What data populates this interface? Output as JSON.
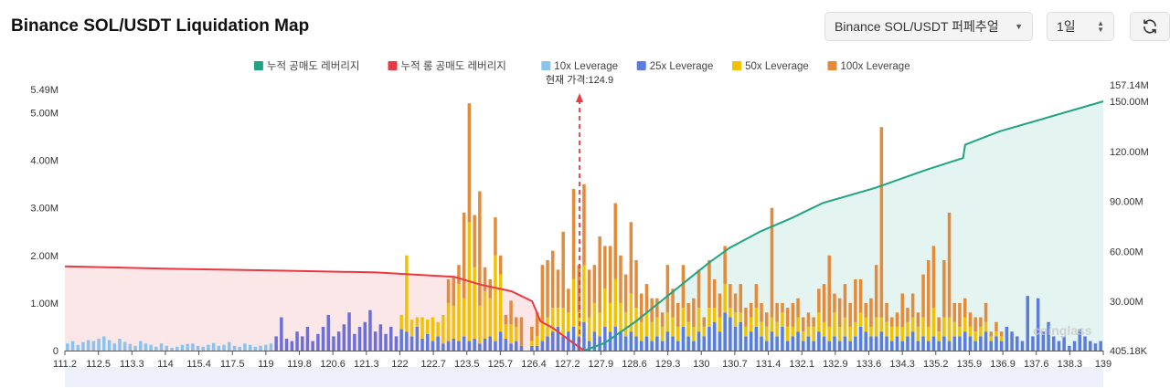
{
  "header": {
    "title": "Binance SOL/USDT Liquidation Map",
    "market_select": "Binance SOL/USDT 퍼페추얼",
    "period_select": "1일",
    "refresh_icon": "refresh-icon"
  },
  "colors": {
    "short_cum": "#21a383",
    "long_cum": "#ea3943",
    "lev10": "#8ac3ec",
    "lev25": "#5b7be0",
    "lev50": "#f2c200",
    "lev100": "#e38b3b",
    "purple": "#6c6fd8"
  },
  "chart_data": {
    "type": "bar",
    "title": "Binance SOL/USDT Liquidation Map",
    "current_price_label": "현재 가격:124.9",
    "current_price": 124.9,
    "legend": [
      {
        "key": "short_cum",
        "label": "누적 공매도 레버리지"
      },
      {
        "key": "long_cum",
        "label": "누적 롱 공매도 레버리지"
      },
      {
        "key": "lev10",
        "label": "10x Leverage"
      },
      {
        "key": "lev25",
        "label": "25x Leverage"
      },
      {
        "key": "lev50",
        "label": "50x Leverage"
      },
      {
        "key": "lev100",
        "label": "100x Leverage"
      }
    ],
    "y_left": {
      "min": 0,
      "max": 5.49,
      "unit": "M",
      "ticks": [
        "0",
        "1.00M",
        "2.00M",
        "3.00M",
        "4.00M",
        "5.00M",
        "5.49M"
      ],
      "tick_values": [
        0,
        1,
        2,
        3,
        4,
        5,
        5.49
      ]
    },
    "y_right": {
      "min": 0.405,
      "max": 157.14,
      "unit": "M",
      "ticks": [
        "405.18K",
        "30.00M",
        "60.00M",
        "90.00M",
        "120.00M",
        "150.00M",
        "157.14M"
      ],
      "tick_values": [
        0.405,
        30,
        60,
        90,
        120,
        150,
        157.14
      ]
    },
    "x_ticks": [
      "111.2",
      "112.5",
      "113.3",
      "114",
      "115.4",
      "117.5",
      "119",
      "119.8",
      "120.6",
      "121.3",
      "122",
      "122.7",
      "123.5",
      "125.7",
      "126.4",
      "127.2",
      "127.9",
      "128.6",
      "129.3",
      "130",
      "130.7",
      "131.4",
      "132.1",
      "132.9",
      "133.6",
      "134.3",
      "135.2",
      "135.9",
      "136.9",
      "137.6",
      "138.3",
      "139"
    ],
    "long_cumulative": {
      "unit": "M",
      "points": [
        [
          0,
          51
        ],
        [
          0.1,
          49.5
        ],
        [
          0.2,
          48.5
        ],
        [
          0.3,
          47.3
        ],
        [
          0.375,
          44.7
        ],
        [
          0.4,
          40
        ],
        [
          0.43,
          36
        ],
        [
          0.45,
          30
        ],
        [
          0.458,
          18
        ],
        [
          0.47,
          14
        ],
        [
          0.485,
          7
        ],
        [
          0.5,
          0.4
        ]
      ]
    },
    "short_cumulative": {
      "unit": "M",
      "points": [
        [
          0.5,
          0.4
        ],
        [
          0.52,
          5
        ],
        [
          0.55,
          18
        ],
        [
          0.58,
          33
        ],
        [
          0.6,
          43
        ],
        [
          0.62,
          53
        ],
        [
          0.64,
          62
        ],
        [
          0.67,
          72
        ],
        [
          0.7,
          80
        ],
        [
          0.73,
          89
        ],
        [
          0.78,
          98
        ],
        [
          0.83,
          109
        ],
        [
          0.865,
          116
        ],
        [
          0.867,
          124
        ],
        [
          0.9,
          132
        ],
        [
          0.95,
          141
        ],
        [
          1,
          150
        ]
      ]
    },
    "bars": {
      "unit": "M",
      "per_bar": [
        "lev10/lev25",
        "lev50",
        "lev100"
      ],
      "values": [
        [
          0.15,
          0,
          0
        ],
        [
          0.2,
          0,
          0
        ],
        [
          0.12,
          0,
          0
        ],
        [
          0.18,
          0,
          0
        ],
        [
          0.22,
          0,
          0
        ],
        [
          0.2,
          0,
          0
        ],
        [
          0.25,
          0,
          0
        ],
        [
          0.3,
          0,
          0
        ],
        [
          0.22,
          0,
          0
        ],
        [
          0.15,
          0,
          0
        ],
        [
          0.25,
          0,
          0
        ],
        [
          0.18,
          0,
          0
        ],
        [
          0.14,
          0,
          0
        ],
        [
          0.1,
          0,
          0
        ],
        [
          0.2,
          0,
          0
        ],
        [
          0.15,
          0,
          0
        ],
        [
          0.12,
          0,
          0
        ],
        [
          0.08,
          0,
          0
        ],
        [
          0.15,
          0,
          0
        ],
        [
          0.1,
          0,
          0
        ],
        [
          0.06,
          0,
          0
        ],
        [
          0.08,
          0,
          0
        ],
        [
          0.12,
          0,
          0
        ],
        [
          0.14,
          0,
          0
        ],
        [
          0.15,
          0,
          0
        ],
        [
          0.1,
          0,
          0
        ],
        [
          0.08,
          0,
          0
        ],
        [
          0.12,
          0,
          0
        ],
        [
          0.16,
          0,
          0
        ],
        [
          0.1,
          0,
          0
        ],
        [
          0.12,
          0,
          0
        ],
        [
          0.18,
          0,
          0
        ],
        [
          0.1,
          0,
          0
        ],
        [
          0.08,
          0,
          0
        ],
        [
          0.15,
          0,
          0
        ],
        [
          0.12,
          0,
          0
        ],
        [
          0.08,
          0,
          0
        ],
        [
          0.1,
          0,
          0
        ],
        [
          0.12,
          0,
          0
        ],
        [
          0.15,
          0,
          0
        ],
        [
          0.3,
          0,
          0
        ],
        [
          0.7,
          0,
          0
        ],
        [
          0.25,
          0,
          0
        ],
        [
          0.2,
          0,
          0
        ],
        [
          0.4,
          0,
          0
        ],
        [
          0.3,
          0,
          0
        ],
        [
          0.5,
          0,
          0
        ],
        [
          0.2,
          0,
          0
        ],
        [
          0.35,
          0,
          0
        ],
        [
          0.5,
          0,
          0
        ],
        [
          0.75,
          0,
          0
        ],
        [
          0.3,
          0,
          0
        ],
        [
          0.4,
          0,
          0
        ],
        [
          0.55,
          0,
          0
        ],
        [
          0.8,
          0,
          0
        ],
        [
          0.35,
          0,
          0
        ],
        [
          0.5,
          0,
          0
        ],
        [
          0.6,
          0,
          0
        ],
        [
          0.85,
          0,
          0
        ],
        [
          0.4,
          0,
          0
        ],
        [
          0.55,
          0,
          0
        ],
        [
          0.35,
          0,
          0
        ],
        [
          0.5,
          0,
          0
        ],
        [
          0.3,
          0,
          0
        ],
        [
          0.45,
          0.3,
          0
        ],
        [
          0.4,
          1.6,
          0
        ],
        [
          0.3,
          0.35,
          0
        ],
        [
          0.5,
          0.2,
          0
        ],
        [
          0.25,
          0.45,
          0
        ],
        [
          0.35,
          0.3,
          0
        ],
        [
          0.2,
          0.5,
          0
        ],
        [
          0.3,
          0.3,
          0
        ],
        [
          0.15,
          0.6,
          0
        ],
        [
          0.2,
          0.8,
          0.5
        ],
        [
          0.25,
          0.7,
          0.6
        ],
        [
          0.2,
          1.2,
          0.4
        ],
        [
          0.3,
          0.8,
          1.8
        ],
        [
          0.2,
          2.5,
          2.5
        ],
        [
          0.25,
          1.5,
          1.1
        ],
        [
          0.15,
          0.8,
          2.4
        ],
        [
          0.25,
          1.0,
          0.5
        ],
        [
          0.3,
          0.8,
          0.4
        ],
        [
          0.2,
          1.8,
          0.8
        ],
        [
          0.4,
          1.2,
          0.4
        ],
        [
          0.25,
          0.3,
          0.2
        ],
        [
          0.15,
          0.4,
          0.5
        ],
        [
          0.2,
          0.3,
          0.2
        ],
        [
          0.1,
          0,
          0.6
        ],
        [
          0,
          0,
          0
        ],
        [
          0.1,
          0.1,
          0.3
        ],
        [
          0.1,
          0.2,
          0.5
        ],
        [
          0.2,
          0.4,
          1.2
        ],
        [
          0.3,
          0.4,
          1.2
        ],
        [
          0.4,
          0.5,
          1.2
        ],
        [
          0.5,
          0.4,
          0.8
        ],
        [
          0.3,
          0.6,
          1.6
        ],
        [
          0.4,
          0.4,
          0.5
        ],
        [
          0.5,
          1.0,
          1.9
        ],
        [
          0.3,
          0.5,
          1.0
        ],
        [
          0.6,
          1.2,
          1.7
        ],
        [
          0.2,
          0.5,
          1.0
        ],
        [
          0.4,
          0.6,
          0.8
        ],
        [
          0.3,
          0.5,
          1.6
        ],
        [
          0.5,
          0.8,
          0.9
        ],
        [
          0.4,
          0.6,
          1.2
        ],
        [
          0.5,
          1.0,
          1.6
        ],
        [
          0.4,
          0.6,
          1.0
        ],
        [
          0.3,
          0.5,
          0.8
        ],
        [
          0.4,
          0.8,
          1.5
        ],
        [
          0.3,
          0.6,
          1.0
        ],
        [
          0.2,
          0.4,
          0.6
        ],
        [
          0.3,
          0.5,
          0.6
        ],
        [
          0.2,
          0.4,
          0.5
        ],
        [
          0.3,
          0.4,
          0.4
        ],
        [
          0.2,
          0.3,
          0.3
        ],
        [
          0.4,
          0.4,
          1.0
        ],
        [
          0.3,
          0.4,
          0.6
        ],
        [
          0.2,
          0.3,
          0.5
        ],
        [
          0.5,
          0.4,
          0.9
        ],
        [
          0.3,
          0.3,
          0.4
        ],
        [
          0.2,
          0.3,
          0.6
        ],
        [
          0.4,
          0.5,
          0.8
        ],
        [
          0.3,
          0.2,
          0.2
        ],
        [
          0.5,
          0.4,
          1.0
        ],
        [
          0.6,
          0.3,
          0.6
        ],
        [
          0.4,
          0.3,
          0.5
        ],
        [
          0.8,
          0.6,
          0.8
        ],
        [
          0.7,
          0.2,
          0.5
        ],
        [
          0.5,
          0.3,
          0.4
        ],
        [
          0.6,
          0.2,
          0.6
        ],
        [
          0.3,
          0.2,
          0.4
        ],
        [
          0.4,
          0.3,
          0.3
        ],
        [
          0.5,
          0.4,
          0.5
        ],
        [
          0.3,
          0.3,
          0.4
        ],
        [
          0.2,
          0.3,
          0.3
        ],
        [
          0.4,
          0.3,
          2.3
        ],
        [
          0.3,
          0.3,
          0.4
        ],
        [
          0.5,
          0.3,
          0.2
        ],
        [
          0.2,
          0.3,
          0.4
        ],
        [
          0.3,
          0.2,
          0.5
        ],
        [
          0.4,
          0.3,
          0.4
        ],
        [
          0.2,
          0.2,
          0.3
        ],
        [
          0.3,
          0.2,
          0.3
        ],
        [
          0.2,
          0.3,
          0.2
        ],
        [
          0.4,
          0.4,
          0.5
        ],
        [
          0.3,
          0.3,
          0.8
        ],
        [
          0.2,
          0.3,
          1.5
        ],
        [
          0.3,
          0.5,
          0.4
        ],
        [
          0.2,
          0.3,
          0.6
        ],
        [
          0.3,
          0.4,
          0.7
        ],
        [
          0.2,
          0.3,
          0.5
        ],
        [
          0.3,
          0.3,
          0.9
        ],
        [
          0.5,
          0.3,
          0.7
        ],
        [
          0.4,
          0.3,
          0.3
        ],
        [
          0.3,
          0.2,
          0.6
        ],
        [
          0.3,
          0.4,
          1.1
        ],
        [
          0.4,
          0.3,
          4.0
        ],
        [
          0.3,
          0.3,
          0.4
        ],
        [
          0.2,
          0.3,
          0.2
        ],
        [
          0.3,
          0.2,
          0.3
        ],
        [
          0.2,
          0.3,
          0.7
        ],
        [
          0.3,
          0.3,
          0.3
        ],
        [
          0.4,
          0.3,
          0.5
        ],
        [
          0.2,
          0.3,
          0.3
        ],
        [
          0.3,
          0.4,
          0.9
        ],
        [
          0.2,
          0.3,
          1.4
        ],
        [
          0.3,
          0.6,
          1.3
        ],
        [
          0.2,
          0.2,
          0.3
        ],
        [
          0.3,
          0.4,
          1.2
        ],
        [
          0.2,
          0.5,
          2.2
        ],
        [
          0.3,
          0.3,
          0.4
        ],
        [
          0.3,
          0.2,
          0.5
        ],
        [
          0.4,
          0.3,
          0.4
        ],
        [
          0.3,
          0.2,
          0.3
        ],
        [
          0.2,
          0.2,
          0.3
        ],
        [
          0.3,
          0.2,
          0.2
        ],
        [
          0.4,
          0.2,
          0.4
        ],
        [
          0.2,
          0.1,
          0.1
        ],
        [
          0.3,
          0.1,
          0.2
        ],
        [
          0.2,
          0.1,
          0.1
        ],
        [
          0.5,
          0,
          0
        ],
        [
          0.4,
          0,
          0
        ],
        [
          0.3,
          0,
          0
        ],
        [
          0.2,
          0,
          0
        ],
        [
          1.15,
          0,
          0
        ],
        [
          0.3,
          0,
          0
        ],
        [
          1.1,
          0,
          0
        ],
        [
          0.4,
          0,
          0
        ],
        [
          0.6,
          0,
          0
        ],
        [
          0.3,
          0,
          0
        ],
        [
          0.2,
          0,
          0
        ],
        [
          0.3,
          0,
          0
        ],
        [
          0.1,
          0,
          0
        ],
        [
          0.2,
          0,
          0
        ],
        [
          0.45,
          0,
          0
        ],
        [
          0.3,
          0,
          0
        ],
        [
          0.2,
          0,
          0
        ],
        [
          0.15,
          0,
          0
        ],
        [
          0.2,
          0,
          0
        ]
      ]
    }
  },
  "watermark": "coinglass"
}
